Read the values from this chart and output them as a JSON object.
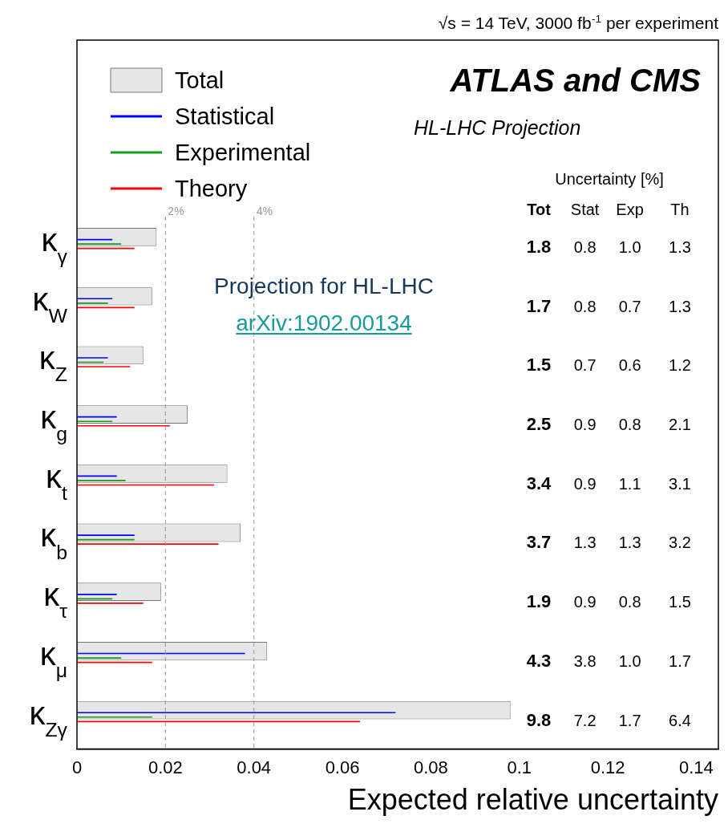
{
  "chart_data": {
    "type": "bar",
    "orientation": "horizontal",
    "categories": [
      "κ$_{γ}$",
      "κ$_{W}$",
      "κ$_{Z}$",
      "κ$_{g}$",
      "κ$_{t}$",
      "κ$_{b}$",
      "κ$_{τ}$",
      "κ$_{μ}$",
      "κ$_{Zγ}$"
    ],
    "series": [
      {
        "name": "Total",
        "color": "#e6e6e6",
        "values": [
          0.018,
          0.017,
          0.015,
          0.025,
          0.034,
          0.037,
          0.019,
          0.043,
          0.098
        ]
      },
      {
        "name": "Statistical",
        "color": "#0000ff",
        "values": [
          0.008,
          0.008,
          0.007,
          0.009,
          0.009,
          0.013,
          0.009,
          0.038,
          0.072
        ]
      },
      {
        "name": "Experimental",
        "color": "#1a9a1a",
        "values": [
          0.01,
          0.007,
          0.006,
          0.008,
          0.011,
          0.013,
          0.008,
          0.01,
          0.017
        ]
      },
      {
        "name": "Theory",
        "color": "#ff0000",
        "values": [
          0.013,
          0.013,
          0.012,
          0.021,
          0.031,
          0.032,
          0.015,
          0.017,
          0.064
        ]
      }
    ],
    "xlim": [
      0,
      0.145
    ],
    "xticks": [
      0,
      0.02,
      0.04,
      0.06,
      0.08,
      0.1,
      0.12,
      0.14
    ],
    "xlabel": "Expected relative uncertainty",
    "legend": "top left",
    "ref_lines": [
      {
        "axis": "x",
        "value": 0.02,
        "label": "2%",
        "color": "#999999",
        "line_style": "dashed"
      },
      {
        "axis": "x",
        "value": 0.04,
        "label": "4%",
        "color": "#999999",
        "line_style": "dashed"
      }
    ],
    "annotations": [
      "√s = 14 TeV, 3000 fb$^{-1}$ per experiment",
      "ATLAS and CMS",
      "HL-LHC Projection",
      "Uncertainty [%]",
      "Tot",
      "Stat",
      "Exp",
      "Th",
      "Projection for HL-LHC",
      "arXiv:1902.00134",
      "1.8",
      "0.8",
      "1.0",
      "1.3",
      "1.7",
      "0.8",
      "0.7",
      "1.3",
      "1.5",
      "0.7",
      "0.6",
      "1.2",
      "2.5",
      "0.9",
      "0.8",
      "2.1",
      "3.4",
      "0.9",
      "1.1",
      "3.1",
      "3.7",
      "1.3",
      "1.3",
      "3.2",
      "1.9",
      "0.9",
      "0.8",
      "1.5",
      "4.3",
      "3.8",
      "1.0",
      "1.7",
      "9.8",
      "7.2",
      "1.7",
      "6.4"
    ]
  }
}
